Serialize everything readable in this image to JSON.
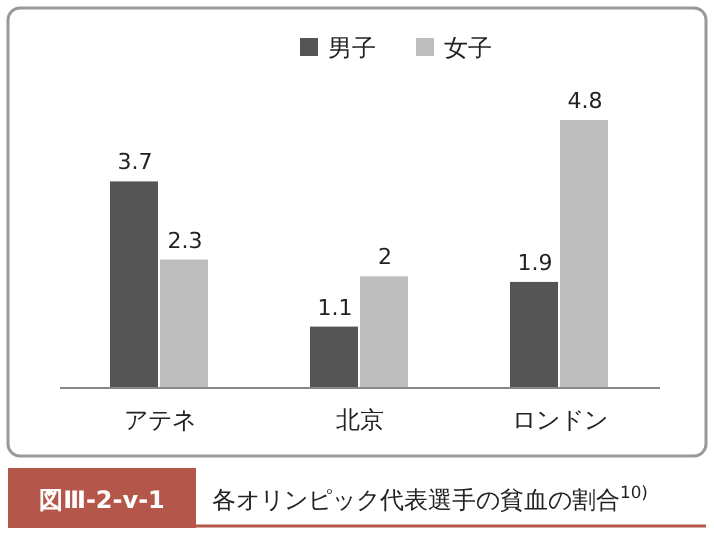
{
  "chart_data": {
    "type": "bar",
    "title": "各オリンピック代表選手の貧血の割合$^{10)}$",
    "annotations": [
      "図Ⅲ-2-v-1"
    ],
    "categories": [
      "アテネ",
      "北京",
      "ロンドン"
    ],
    "series": [
      {
        "name": "男子",
        "color": "#555555",
        "values": [
          3.7,
          1.1,
          1.9
        ]
      },
      {
        "name": "女子",
        "color": "#bdbdbd",
        "values": [
          2.3,
          2,
          4.8
        ]
      }
    ],
    "data_labels": true,
    "legend": "top"
  }
}
